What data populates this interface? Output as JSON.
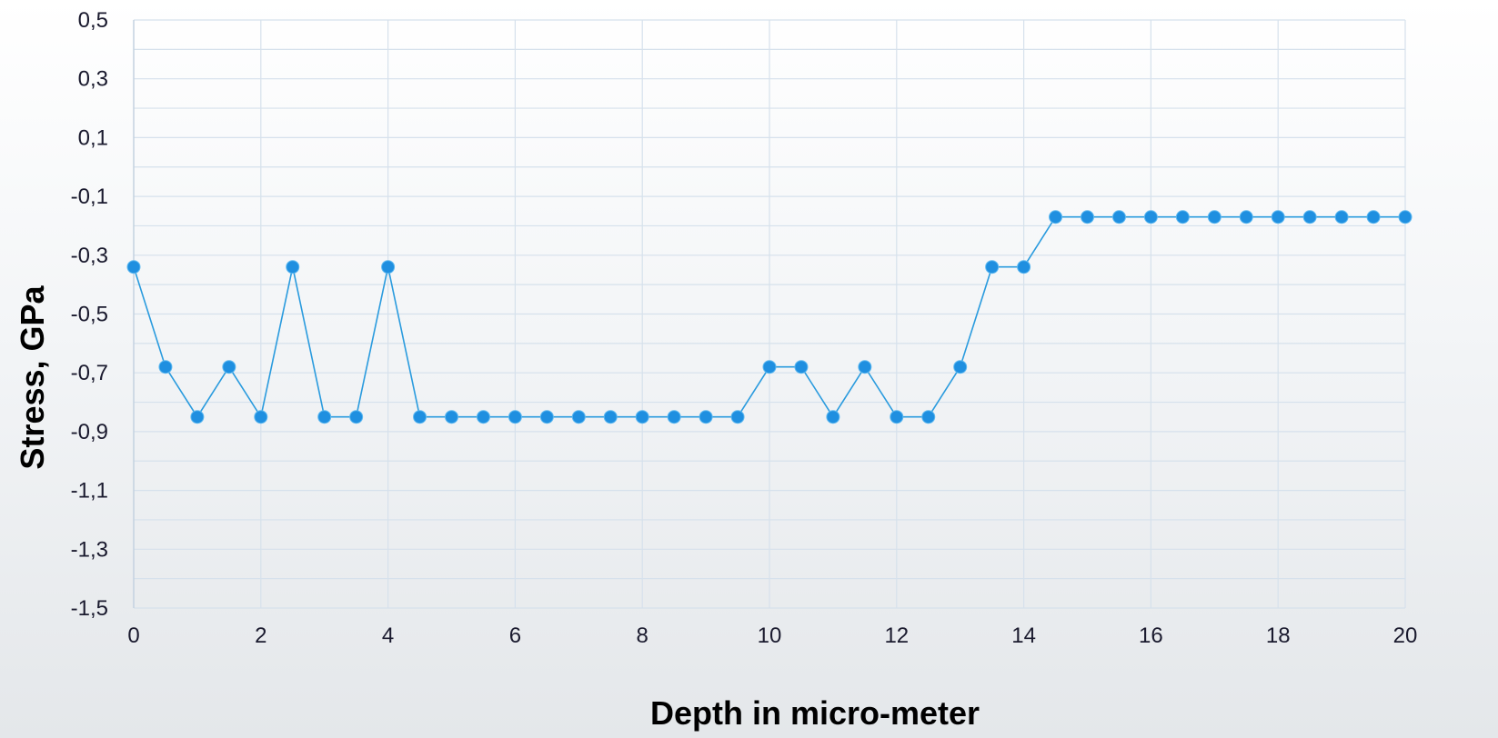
{
  "chart_data": {
    "type": "line",
    "xlabel": "Depth in micro-meter",
    "ylabel": "Stress, GPa",
    "xlim": [
      0,
      20
    ],
    "ylim": [
      -1.5,
      0.5
    ],
    "x_ticks": [
      "0",
      "2",
      "4",
      "6",
      "8",
      "10",
      "12",
      "14",
      "16",
      "18",
      "20"
    ],
    "y_ticks": [
      "0,5",
      "0,3",
      "0,1",
      "-0,1",
      "-0,3",
      "-0,5",
      "-0,7",
      "-0,9",
      "-1,1",
      "-1,3",
      "-1,5"
    ],
    "grid": true,
    "color": "#2a9bde",
    "marker_color": "#1f8fe0",
    "x": [
      0,
      0.5,
      1,
      1.5,
      2,
      2.5,
      3,
      3.5,
      4,
      4.5,
      5,
      5.5,
      6,
      6.5,
      7,
      7.5,
      8,
      8.5,
      9,
      9.5,
      10,
      10.5,
      11,
      11.5,
      12,
      12.5,
      13,
      13.5,
      14,
      14.5,
      15,
      15.5,
      16,
      16.5,
      17,
      17.5,
      18,
      18.5,
      19,
      19.5,
      20
    ],
    "y": [
      -0.34,
      -0.68,
      -0.85,
      -0.68,
      -0.85,
      -0.34,
      -0.85,
      -0.85,
      -0.34,
      -0.85,
      -0.85,
      -0.85,
      -0.85,
      -0.85,
      -0.85,
      -0.85,
      -0.85,
      -0.85,
      -0.85,
      -0.85,
      -0.68,
      -0.68,
      -0.85,
      -0.68,
      -0.85,
      -0.85,
      -0.68,
      -0.34,
      -0.34,
      -0.17,
      -0.17,
      -0.17,
      -0.17,
      -0.17,
      -0.17,
      -0.17,
      -0.17,
      -0.17,
      -0.17,
      -0.17,
      -0.17
    ]
  }
}
